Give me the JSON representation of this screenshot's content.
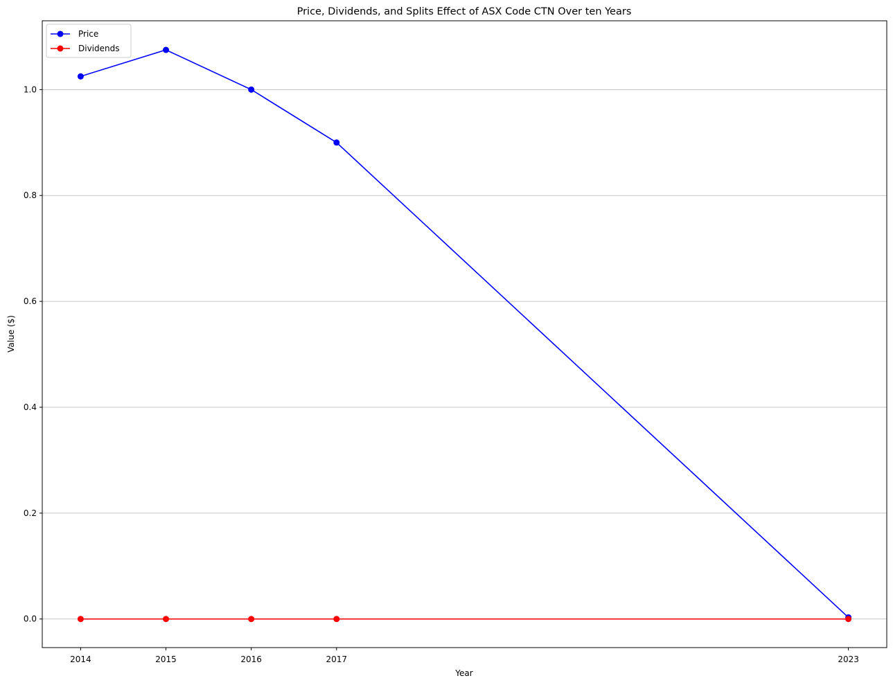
{
  "chart_data": {
    "type": "line",
    "title": "Price, Dividends, and Splits Effect of ASX Code CTN Over ten Years",
    "xlabel": "Year",
    "ylabel": "Value ($)",
    "x": [
      2014,
      2015,
      2016,
      2017,
      2023
    ],
    "x_ticks": [
      "2014",
      "2015",
      "2016",
      "2017",
      "2023"
    ],
    "xlim": [
      2013.55,
      2023.45
    ],
    "ylim": [
      -0.054,
      1.13
    ],
    "y_ticks": [
      0.0,
      0.2,
      0.4,
      0.6,
      0.8,
      1.0
    ],
    "y_tick_labels": [
      "0.0",
      "0.2",
      "0.4",
      "0.6",
      "0.8",
      "1.0"
    ],
    "grid": "horizontal",
    "legend_position": "top-left",
    "series": [
      {
        "name": "Price",
        "color": "#0000ff",
        "values": [
          1.025,
          1.075,
          1.0,
          0.9,
          0.003
        ]
      },
      {
        "name": "Dividends",
        "color": "#ff0000",
        "values": [
          0.0,
          0.0,
          0.0,
          0.0,
          0.0
        ]
      }
    ]
  }
}
